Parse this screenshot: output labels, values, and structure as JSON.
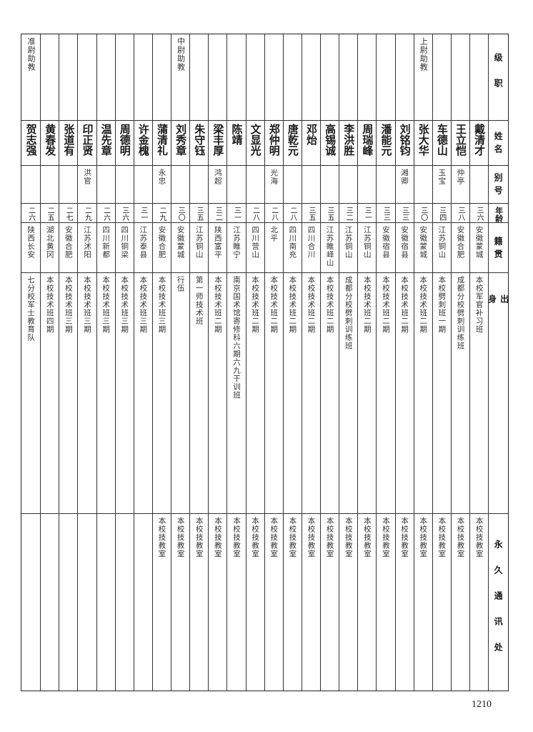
{
  "headers": {
    "level": "级职",
    "name": "姓名",
    "alias": "别号",
    "age": "年龄",
    "origin": "籍贯",
    "background": "出身",
    "address": "永久通讯处"
  },
  "people": [
    {
      "rank": "",
      "name": "戴清才",
      "alias": "",
      "age": "三六",
      "origin": "安徽蒙城",
      "background": "本校军官补习班",
      "address": "本校技教室"
    },
    {
      "rank": "",
      "name": "王立恺",
      "alias": "仲亭",
      "age": "三八",
      "origin": "安徽合肥",
      "background": "成都分校劈刺训练班",
      "address": "本校技教室"
    },
    {
      "rank": "",
      "name": "车德山",
      "alias": "玉宝",
      "age": "三四",
      "origin": "江苏铜山",
      "background": "本校劈刺班一期",
      "address": "本校技教室"
    },
    {
      "rank": "上尉助教",
      "name": "张大华",
      "alias": "",
      "age": "三〇",
      "origin": "安徽蒙城",
      "background": "本校技术班二期",
      "address": "本校技教室"
    },
    {
      "rank": "",
      "name": "刘铭钧",
      "alias": "湘卿",
      "age": "三三",
      "origin": "安徽宿县",
      "background": "本校技术班二期",
      "address": "本校技教室"
    },
    {
      "rank": "",
      "name": "潘能元",
      "alias": "",
      "age": "三三",
      "origin": "安徽宿县",
      "background": "本校技术班二期",
      "address": "本校技教室"
    },
    {
      "rank": "",
      "name": "周瑞峰",
      "alias": "",
      "age": "三一",
      "origin": "江苏铜山",
      "background": "本校技术班二期",
      "address": "本校技教室"
    },
    {
      "rank": "",
      "name": "李洪胜",
      "alias": "",
      "age": "三二",
      "origin": "江苏铜山",
      "background": "成都分校劈刺训练班",
      "address": "本校技教室"
    },
    {
      "rank": "",
      "name": "高锡诚",
      "alias": "",
      "age": "三五",
      "origin": "江苏睢峄山",
      "background": "本校技术班二期",
      "address": "本校技教室"
    },
    {
      "rank": "",
      "name": "邓炲",
      "alias": "",
      "age": "三五",
      "origin": "四川合川",
      "background": "本校技术班二期",
      "address": "本校技教室"
    },
    {
      "rank": "",
      "name": "唐乾元",
      "alias": "",
      "age": "二八",
      "origin": "四川南充",
      "background": "本校技术班二期",
      "address": "本校技教室"
    },
    {
      "rank": "",
      "name": "郑仲明",
      "alias": "光海",
      "age": "二八",
      "origin": "北平",
      "background": "本校技术班二期",
      "address": "本校技教室"
    },
    {
      "rank": "",
      "name": "文显光",
      "alias": "",
      "age": "二八",
      "origin": "四川营山",
      "background": "本校技术班二期",
      "address": "本校技教室"
    },
    {
      "rank": "",
      "name": "陈靖",
      "alias": "",
      "age": "三一",
      "origin": "江苏睢宁",
      "background": "南京国术馆寄修科六期六九干训班",
      "address": "本校技教室"
    },
    {
      "rank": "",
      "name": "梁丰厚",
      "alias": "鸿超",
      "age": "三二",
      "origin": "陕西富平",
      "background": "本校技术班二期",
      "address": "本校技教室"
    },
    {
      "rank": "",
      "name": "朱守钰",
      "alias": "",
      "age": "三五",
      "origin": "江苏铜山",
      "background": "第一师技术班",
      "address": "本校技教室"
    },
    {
      "rank": "中尉助教",
      "name": "刘秀章",
      "alias": "",
      "age": "三〇",
      "origin": "安徽蒙城",
      "background": "行伍",
      "address": "本校技教室"
    },
    {
      "rank": "",
      "name": "蒲清礼",
      "alias": "永忠",
      "age": "二九",
      "origin": "安徽合肥",
      "background": "本校技术班三期",
      "address": "本校技教室"
    },
    {
      "rank": "",
      "name": "许金槐",
      "alias": "",
      "age": "三一",
      "origin": "江苏泰县",
      "background": "本校技术班三期",
      "address": ""
    },
    {
      "rank": "",
      "name": "周德明",
      "alias": "",
      "age": "三六",
      "origin": "四川铜梁",
      "background": "本校技术班三期",
      "address": ""
    },
    {
      "rank": "",
      "name": "温先章",
      "alias": "",
      "age": "二六",
      "origin": "四川新都",
      "background": "本校技术班三期",
      "address": ""
    },
    {
      "rank": "",
      "name": "印正贤",
      "alias": "洪官",
      "age": "二九",
      "origin": "江苏沭阳",
      "background": "本校技术班三期",
      "address": ""
    },
    {
      "rank": "",
      "name": "张道有",
      "alias": "",
      "age": "二七",
      "origin": "安徽合肥",
      "background": "本校技术班三期",
      "address": ""
    },
    {
      "rank": "",
      "name": "黄春发",
      "alias": "",
      "age": "二五",
      "origin": "湖北黄冈",
      "background": "本校技术班四期",
      "address": ""
    },
    {
      "rank": "准尉助教",
      "name": "贺志强",
      "alias": "",
      "age": "二六",
      "origin": "陕西长安",
      "background": "七分校军士教育队",
      "address": ""
    }
  ],
  "page_number": "1210"
}
